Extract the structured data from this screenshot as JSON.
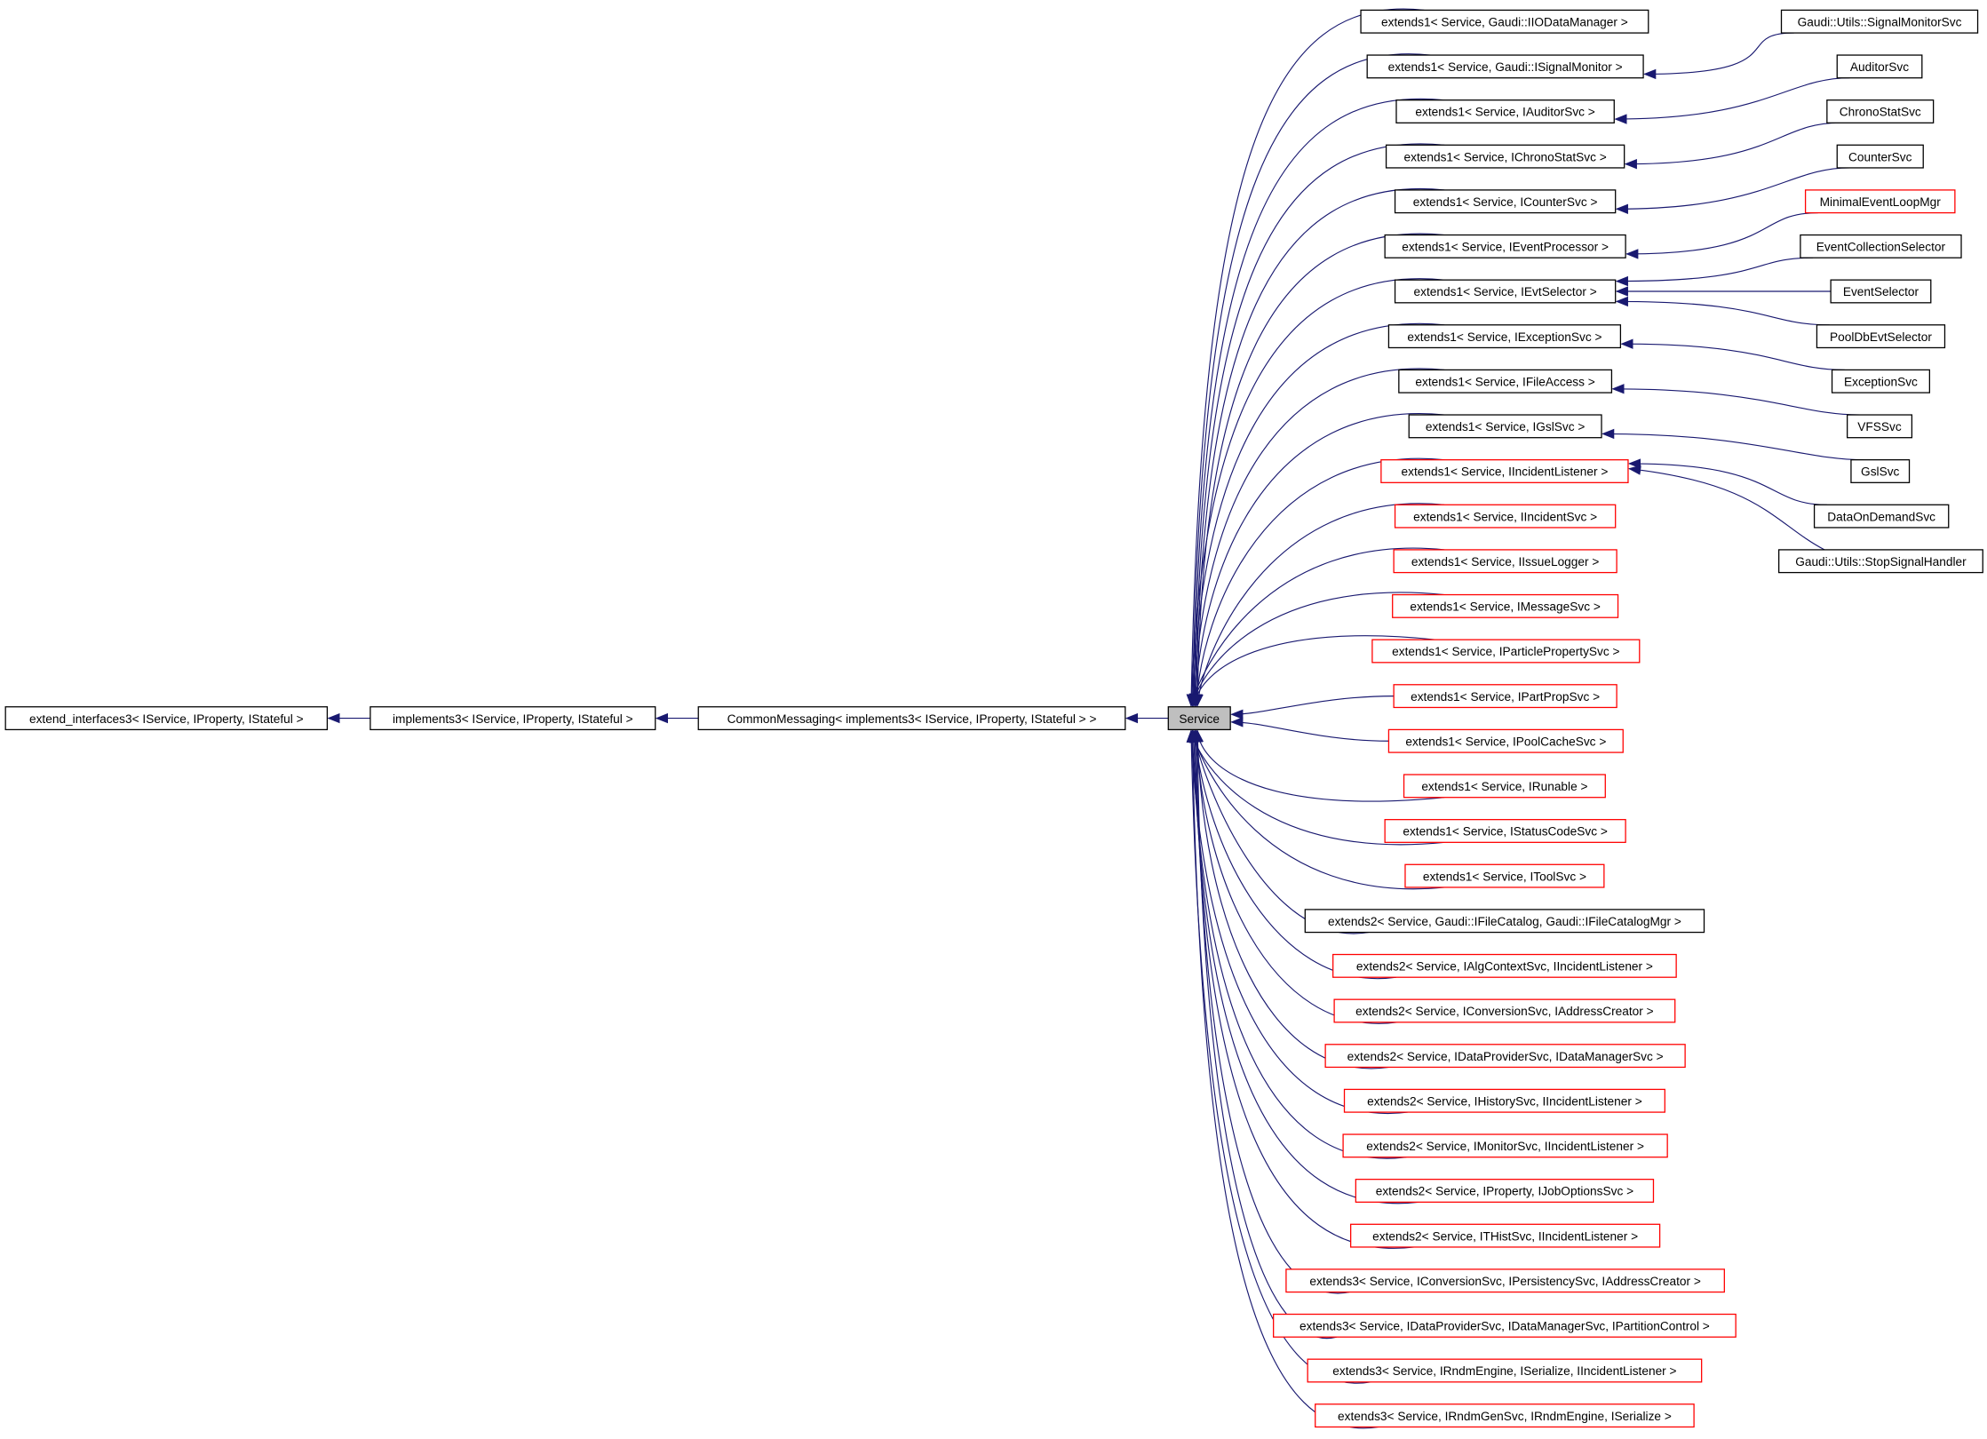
{
  "colors": {
    "edge": "#191970",
    "documented_border": "#000000",
    "undocumented_border": "#ff0000",
    "focus_fill": "#bfbfbf"
  },
  "focus": {
    "id": "service",
    "label": "Service"
  },
  "chain": [
    {
      "id": "common",
      "label": "CommonMessaging< implements3< IService, IProperty, IStateful > >",
      "border": "black"
    },
    {
      "id": "impl",
      "label": "implements3< IService, IProperty, IStateful >",
      "border": "black"
    },
    {
      "id": "extif",
      "label": "extend_interfaces3< IService, IProperty, IStateful >",
      "border": "black"
    }
  ],
  "derived": [
    {
      "label": "extends1< Service, Gaudi::IIODataManager >",
      "border": "black"
    },
    {
      "label": "extends1< Service, Gaudi::ISignalMonitor >",
      "border": "black"
    },
    {
      "label": "extends1< Service, IAuditorSvc >",
      "border": "black"
    },
    {
      "label": "extends1< Service, IChronoStatSvc >",
      "border": "black"
    },
    {
      "label": "extends1< Service, ICounterSvc >",
      "border": "black"
    },
    {
      "label": "extends1< Service, IEventProcessor >",
      "border": "black"
    },
    {
      "label": "extends1< Service, IEvtSelector >",
      "border": "black"
    },
    {
      "label": "extends1< Service, IExceptionSvc >",
      "border": "black"
    },
    {
      "label": "extends1< Service, IFileAccess >",
      "border": "black"
    },
    {
      "label": "extends1< Service, IGslSvc >",
      "border": "black"
    },
    {
      "label": "extends1< Service, IIncidentListener >",
      "border": "red"
    },
    {
      "label": "extends1< Service, IIncidentSvc >",
      "border": "red"
    },
    {
      "label": "extends1< Service, IIssueLogger >",
      "border": "red"
    },
    {
      "label": "extends1< Service, IMessageSvc >",
      "border": "red"
    },
    {
      "label": "extends1< Service, IParticlePropertySvc >",
      "border": "red"
    },
    {
      "label": "extends1< Service, IPartPropSvc >",
      "border": "red"
    },
    {
      "label": "extends1< Service, IPoolCacheSvc >",
      "border": "red"
    },
    {
      "label": "extends1< Service, IRunable >",
      "border": "red"
    },
    {
      "label": "extends1< Service, IStatusCodeSvc >",
      "border": "red"
    },
    {
      "label": "extends1< Service, IToolSvc >",
      "border": "red"
    },
    {
      "label": "extends2< Service, Gaudi::IFileCatalog, Gaudi::IFileCatalogMgr >",
      "border": "black"
    },
    {
      "label": "extends2< Service, IAlgContextSvc, IIncidentListener >",
      "border": "red"
    },
    {
      "label": "extends2< Service, IConversionSvc, IAddressCreator >",
      "border": "red"
    },
    {
      "label": "extends2< Service, IDataProviderSvc, IDataManagerSvc >",
      "border": "red"
    },
    {
      "label": "extends2< Service, IHistorySvc, IIncidentListener >",
      "border": "red"
    },
    {
      "label": "extends2< Service, IMonitorSvc, IIncidentListener >",
      "border": "red"
    },
    {
      "label": "extends2< Service, IProperty, IJobOptionsSvc >",
      "border": "red"
    },
    {
      "label": "extends2< Service, ITHistSvc, IIncidentListener >",
      "border": "red"
    },
    {
      "label": "extends3< Service, IConversionSvc, IPersistencySvc, IAddressCreator >",
      "border": "red"
    },
    {
      "label": "extends3< Service, IDataProviderSvc, IDataManagerSvc, IPartitionControl >",
      "border": "red"
    },
    {
      "label": "extends3< Service, IRndmEngine, ISerialize, IIncidentListener >",
      "border": "red"
    },
    {
      "label": "extends3< Service, IRndmGenSvc, IRndmEngine, ISerialize >",
      "border": "red"
    }
  ],
  "leaves": [
    {
      "label": "Gaudi::Utils::SignalMonitorSvc",
      "border": "black",
      "base": 1
    },
    {
      "label": "AuditorSvc",
      "border": "black",
      "base": 2
    },
    {
      "label": "ChronoStatSvc",
      "border": "black",
      "base": 3
    },
    {
      "label": "CounterSvc",
      "border": "black",
      "base": 4
    },
    {
      "label": "MinimalEventLoopMgr",
      "border": "red",
      "base": 5
    },
    {
      "label": "EventCollectionSelector",
      "border": "black",
      "base": 6
    },
    {
      "label": "EventSelector",
      "border": "black",
      "base": 6
    },
    {
      "label": "PoolDbEvtSelector",
      "border": "black",
      "base": 6
    },
    {
      "label": "ExceptionSvc",
      "border": "black",
      "base": 7
    },
    {
      "label": "VFSSvc",
      "border": "black",
      "base": 8
    },
    {
      "label": "GslSvc",
      "border": "black",
      "base": 9
    },
    {
      "label": "DataOnDemandSvc",
      "border": "black",
      "base": 10
    },
    {
      "label": "Gaudi::Utils::StopSignalHandler",
      "border": "black",
      "base": 10
    }
  ]
}
